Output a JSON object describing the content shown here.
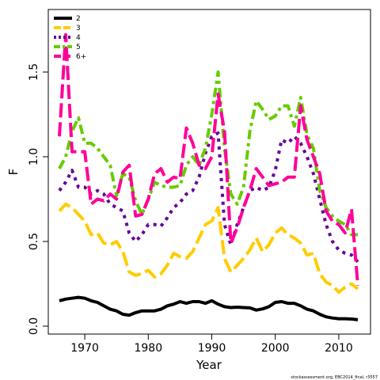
{
  "chart_data": {
    "type": "line",
    "title": "",
    "xlabel": "Year",
    "ylabel": "F",
    "xlim": [
      1965,
      2014
    ],
    "ylim": [
      0,
      1.8
    ],
    "grid": false,
    "legend_position": "top-left",
    "xticks": [
      1970,
      1980,
      1990,
      2000,
      2010
    ],
    "yticks": [
      0.0,
      0.5,
      1.0,
      1.5
    ],
    "ytick_labels": [
      "0.0",
      "0.5",
      "1.0",
      "1.5"
    ],
    "footnote": "stockassessment.org, EBC2014_final, r3557",
    "x": [
      1966,
      1967,
      1968,
      1969,
      1970,
      1971,
      1972,
      1973,
      1974,
      1975,
      1976,
      1977,
      1978,
      1979,
      1980,
      1981,
      1982,
      1983,
      1984,
      1985,
      1986,
      1987,
      1988,
      1989,
      1990,
      1991,
      1992,
      1993,
      1994,
      1995,
      1996,
      1997,
      1998,
      1999,
      2000,
      2001,
      2002,
      2003,
      2004,
      2005,
      2006,
      2007,
      2008,
      2009,
      2010,
      2011,
      2012,
      2013
    ],
    "series": [
      {
        "name": "2",
        "color": "#000000",
        "dash": "solid",
        "values": [
          0.15,
          0.16,
          0.165,
          0.17,
          0.165,
          0.15,
          0.14,
          0.12,
          0.1,
          0.09,
          0.07,
          0.065,
          0.08,
          0.09,
          0.09,
          0.09,
          0.1,
          0.12,
          0.13,
          0.145,
          0.135,
          0.145,
          0.145,
          0.135,
          0.15,
          0.13,
          0.115,
          0.11,
          0.112,
          0.11,
          0.108,
          0.095,
          0.102,
          0.115,
          0.14,
          0.145,
          0.135,
          0.135,
          0.12,
          0.1,
          0.09,
          0.07,
          0.055,
          0.048,
          0.044,
          0.044,
          0.042,
          0.038
        ]
      },
      {
        "name": "3",
        "color": "#FFCC00",
        "dash": "longdash",
        "values": [
          0.68,
          0.72,
          0.7,
          0.66,
          0.62,
          0.54,
          0.55,
          0.49,
          0.48,
          0.5,
          0.44,
          0.32,
          0.3,
          0.31,
          0.33,
          0.29,
          0.31,
          0.36,
          0.43,
          0.41,
          0.4,
          0.44,
          0.52,
          0.6,
          0.62,
          0.7,
          0.4,
          0.32,
          0.36,
          0.4,
          0.45,
          0.52,
          0.44,
          0.48,
          0.55,
          0.58,
          0.54,
          0.52,
          0.49,
          0.42,
          0.43,
          0.31,
          0.26,
          0.24,
          0.2,
          0.23,
          0.25,
          0.22
        ]
      },
      {
        "name": "4",
        "color": "#660099",
        "dash": "dotted",
        "values": [
          0.8,
          0.85,
          0.92,
          0.82,
          0.82,
          0.78,
          0.8,
          0.78,
          0.72,
          0.7,
          0.68,
          0.55,
          0.5,
          0.54,
          0.6,
          0.6,
          0.59,
          0.64,
          0.7,
          0.73,
          0.78,
          0.8,
          0.88,
          1.02,
          1.12,
          1.14,
          0.6,
          0.48,
          0.6,
          0.7,
          0.8,
          0.82,
          0.8,
          0.82,
          0.92,
          1.1,
          1.08,
          1.12,
          1.08,
          1.0,
          0.9,
          0.75,
          0.6,
          0.5,
          0.45,
          0.43,
          0.42,
          0.38
        ]
      },
      {
        "name": "5",
        "color": "#66CC00",
        "dash": "dashdot",
        "values": [
          0.93,
          1.0,
          1.15,
          1.23,
          1.08,
          1.08,
          1.05,
          1.0,
          0.95,
          0.77,
          0.9,
          0.88,
          0.74,
          0.66,
          0.75,
          0.85,
          0.83,
          0.82,
          0.82,
          0.83,
          0.95,
          1.0,
          0.95,
          1.05,
          1.25,
          1.5,
          1.05,
          0.78,
          0.72,
          0.82,
          1.15,
          1.33,
          1.28,
          1.22,
          1.24,
          1.3,
          1.3,
          1.18,
          1.35,
          1.13,
          1.05,
          0.8,
          0.7,
          0.65,
          0.62,
          0.6,
          0.54,
          0.54
        ]
      },
      {
        "name": "6+",
        "color": "#FF0099",
        "dash": "longdash",
        "values": [
          1.12,
          1.72,
          1.03,
          1.03,
          1.03,
          0.72,
          0.75,
          0.74,
          0.78,
          0.75,
          0.91,
          0.95,
          0.65,
          0.66,
          0.75,
          0.9,
          0.93,
          0.85,
          0.88,
          0.87,
          1.17,
          1.08,
          0.95,
          0.93,
          1.0,
          1.37,
          1.15,
          0.49,
          0.58,
          0.7,
          0.8,
          0.93,
          0.88,
          0.83,
          0.84,
          0.85,
          0.88,
          0.88,
          1.3,
          1.1,
          1.0,
          0.9,
          0.68,
          0.62,
          0.6,
          0.55,
          0.69,
          0.24
        ]
      }
    ]
  }
}
